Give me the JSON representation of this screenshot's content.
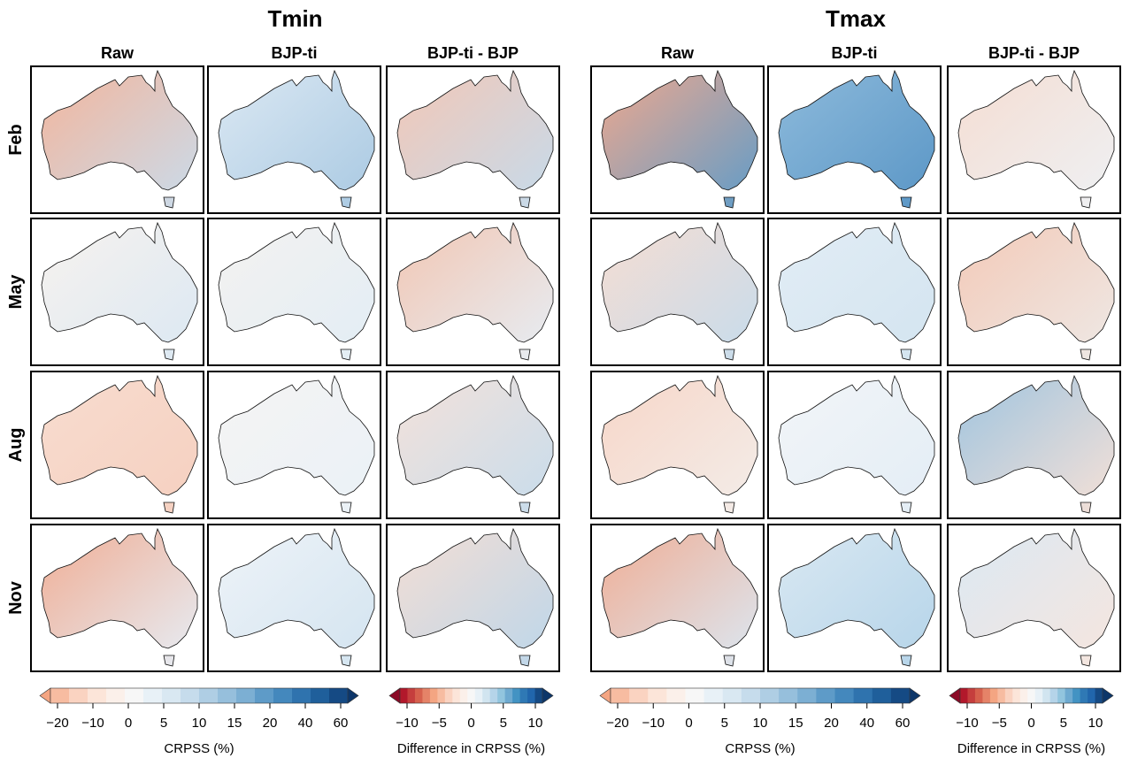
{
  "groups": [
    {
      "title": "Tmin",
      "columns": [
        "Raw",
        "BJP-ti",
        "BJP-ti - BJP"
      ]
    },
    {
      "title": "Tmax",
      "columns": [
        "Raw",
        "BJP-ti",
        "BJP-ti - BJP"
      ]
    }
  ],
  "rows": [
    "Feb",
    "May",
    "Aug",
    "Nov"
  ],
  "colorbars": [
    {
      "label": "CRPSS (%)",
      "ticks": [
        {
          "value": -20,
          "label": "−20"
        },
        {
          "value": -10,
          "label": "−10"
        },
        0,
        5,
        10,
        15,
        20,
        40,
        60
      ],
      "colors": [
        "#f4a582",
        "#f7bca1",
        "#fad3c1",
        "#fce5d9",
        "#fbf0ea",
        "#f7f7f7",
        "#e8f1f7",
        "#d9e8f2",
        "#c6dcec",
        "#afcee4",
        "#96bfdc",
        "#7cafd3",
        "#5e9bc8",
        "#4488bd",
        "#2f73ae",
        "#1f5f9b",
        "#154a84",
        "#0d3669"
      ]
    },
    {
      "label": "Difference in CRPSS (%)",
      "ticks": [
        {
          "value": -10,
          "label": "−10"
        },
        {
          "value": -5,
          "label": "−5"
        },
        0,
        5,
        10
      ],
      "colors": [
        "#8b0a26",
        "#b2182b",
        "#c53e3d",
        "#d6604d",
        "#e58368",
        "#f4a582",
        "#f7bca1",
        "#fad3c1",
        "#fce5d9",
        "#fbf0ea",
        "#f7f7f7",
        "#e8f1f7",
        "#d1e5f0",
        "#b5d4e9",
        "#92c5de",
        "#6eaad0",
        "#4393c3",
        "#2f79b5",
        "#2166ac",
        "#154a84",
        "#0d3669"
      ]
    }
  ]
}
